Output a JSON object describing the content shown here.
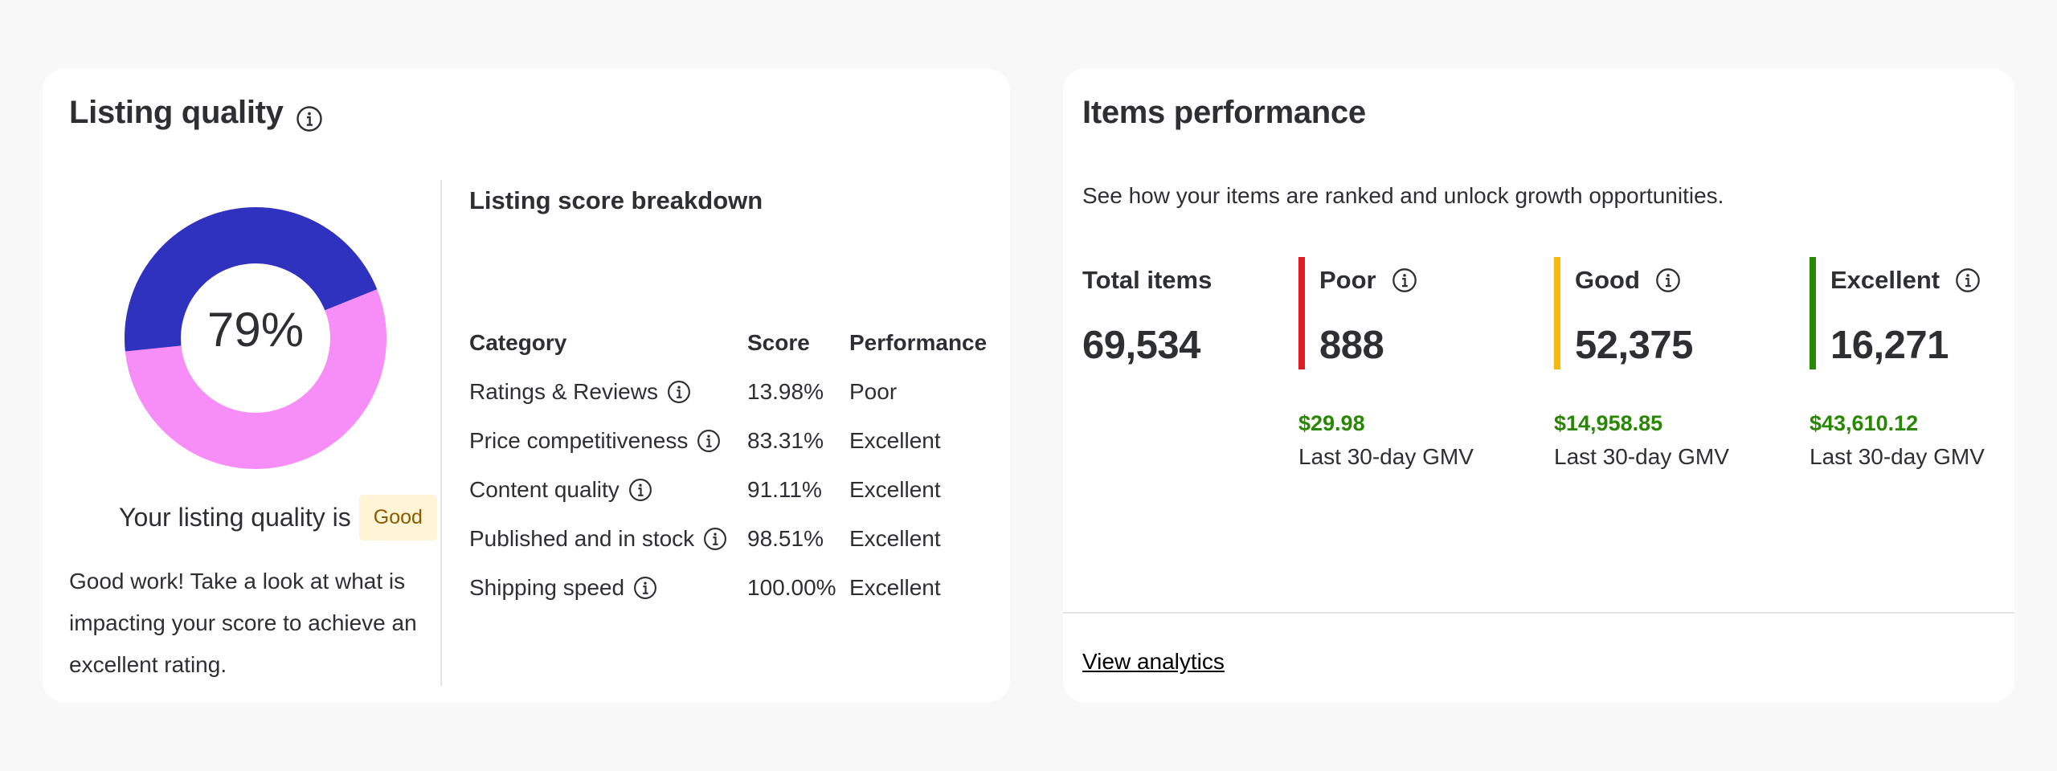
{
  "listing_quality": {
    "title": "Listing quality",
    "score_percent": 79,
    "score_text": "79%",
    "status_prefix": "Your listing quality is",
    "status_badge": "Good",
    "message": "Good work! Take a look at what is impacting your score to achieve an excellent rating.",
    "colors": {
      "primary": "#2e32be",
      "secondary": "#f78ef7",
      "badge_bg": "#fff4d6",
      "badge_text": "#8a5a00"
    },
    "info_icon": "info-icon"
  },
  "breakdown": {
    "title": "Listing score breakdown",
    "headers": {
      "category": "Category",
      "score": "Score",
      "performance": "Performance"
    },
    "rows": [
      {
        "category": "Ratings & Reviews",
        "score": "13.98%",
        "performance": "Poor"
      },
      {
        "category": "Price competitiveness",
        "score": "83.31%",
        "performance": "Excellent"
      },
      {
        "category": "Content quality",
        "score": "91.11%",
        "performance": "Excellent"
      },
      {
        "category": "Published and in stock",
        "score": "98.51%",
        "performance": "Excellent"
      },
      {
        "category": "Shipping speed",
        "score": "100.00%",
        "performance": "Excellent"
      }
    ]
  },
  "items_performance": {
    "title": "Items performance",
    "subtitle": "See how your items are ranked and unlock growth opportunities.",
    "total": {
      "label": "Total items",
      "value": "69,534"
    },
    "tiers": {
      "poor": {
        "label": "Poor",
        "value": "888",
        "gmv": "$29.98",
        "gmv_label": "Last 30-day GMV",
        "color": "#de1c24"
      },
      "good": {
        "label": "Good",
        "value": "52,375",
        "gmv": "$14,958.85",
        "gmv_label": "Last 30-day GMV",
        "color": "#f5b812"
      },
      "excellent": {
        "label": "Excellent",
        "value": "16,271",
        "gmv": "$43,610.12",
        "gmv_label": "Last 30-day GMV",
        "color": "#2a8703"
      }
    },
    "gmv_color": "#2a8703",
    "link": "View analytics"
  }
}
